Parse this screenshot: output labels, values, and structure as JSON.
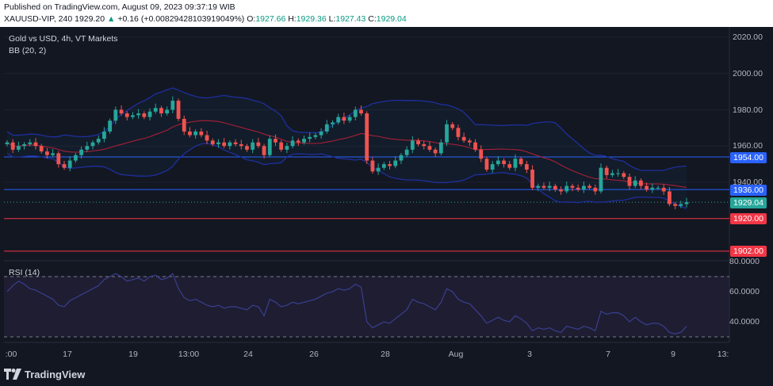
{
  "header": {
    "published": "Published on TradingView.com, August 09, 2023 09:37:19 WIB",
    "symbol": "XAUUSD-VIP, 240",
    "last": "1929.20",
    "change": "+0.16 (+0.00829428103919049%)",
    "o_label": "O:",
    "o": "1927.66",
    "h_label": "H:",
    "h": "1929.36",
    "l_label": "L:",
    "l": "1927.43",
    "c_label": "C:",
    "c": "1929.04"
  },
  "legend": {
    "title": "Gold vs USD, 4h, VT Markets",
    "indicator": "BB (20, 2)",
    "rsi": "RSI (14)"
  },
  "price_axis": [
    "2020.00",
    "2000.00",
    "1980.00",
    "1960.00",
    "1940.00",
    "1920.00",
    "1902.00"
  ],
  "rsi_axis": [
    "80.0000",
    "60.0000",
    "40.0000"
  ],
  "time_axis": [
    ":00",
    "17",
    "19",
    "13:00",
    "24",
    "26",
    "28",
    "Aug",
    "3",
    "7",
    "9",
    "13:"
  ],
  "price_tags": [
    {
      "label": "1954.00",
      "color": "#2962ff"
    },
    {
      "label": "1936.00",
      "color": "#2962ff"
    },
    {
      "label": "1929.04",
      "color": "#26a69a"
    },
    {
      "label": "1920.00",
      "color": "#f23645"
    },
    {
      "label": "1902.00",
      "color": "#f23645"
    }
  ],
  "logo": {
    "text": "TradingView"
  },
  "chart_data": {
    "type": "candlestick",
    "title": "Gold vs USD, 4h, VT Markets",
    "ylim": [
      1895,
      2024
    ],
    "horizontal_levels": [
      {
        "value": 1954.0,
        "color": "#2962ff"
      },
      {
        "value": 1936.0,
        "color": "#2962ff"
      },
      {
        "value": 1920.0,
        "color": "#f23645"
      },
      {
        "value": 1902.0,
        "color": "#f23645"
      }
    ],
    "close_series": [
      1962,
      1958,
      1960,
      1961,
      1962,
      1960,
      1957,
      1955,
      1956,
      1950,
      1948,
      1952,
      1955,
      1958,
      1960,
      1962,
      1964,
      1968,
      1974,
      1980,
      1978,
      1976,
      1977,
      1978,
      1976,
      1979,
      1981,
      1978,
      1980,
      1985,
      1975,
      1968,
      1966,
      1968,
      1966,
      1963,
      1961,
      1962,
      1960,
      1962,
      1961,
      1960,
      1958,
      1962,
      1960,
      1955,
      1964,
      1962,
      1958,
      1960,
      1963,
      1962,
      1964,
      1965,
      1966,
      1968,
      1972,
      1973,
      1976,
      1974,
      1976,
      1980,
      1978,
      1952,
      1946,
      1948,
      1950,
      1949,
      1952,
      1955,
      1958,
      1963,
      1961,
      1960,
      1958,
      1956,
      1962,
      1972,
      1970,
      1965,
      1963,
      1962,
      1958,
      1953,
      1947,
      1950,
      1952,
      1950,
      1948,
      1953,
      1950,
      1947,
      1937,
      1938,
      1937,
      1938,
      1936,
      1935,
      1938,
      1937,
      1936,
      1938,
      1937,
      1935,
      1948,
      1944,
      1945,
      1945,
      1943,
      1938,
      1941,
      1938,
      1936,
      1937,
      1937,
      1935,
      1928,
      1927,
      1928,
      1929.04
    ],
    "rsi_series": [
      60,
      64,
      67,
      65,
      62,
      61,
      59,
      57,
      55,
      51,
      50,
      54,
      56,
      58,
      60,
      62,
      64,
      68,
      70,
      72,
      70,
      67,
      68,
      69,
      67,
      70,
      71,
      68,
      69,
      72,
      62,
      56,
      54,
      55,
      53,
      51,
      50,
      51,
      49,
      50,
      50,
      49,
      48,
      51,
      50,
      44,
      55,
      53,
      50,
      51,
      53,
      52,
      53,
      54,
      55,
      57,
      59,
      60,
      62,
      61,
      62,
      65,
      63,
      40,
      36,
      38,
      40,
      39,
      42,
      45,
      48,
      55,
      53,
      52,
      50,
      48,
      53,
      62,
      60,
      55,
      53,
      52,
      48,
      44,
      39,
      41,
      43,
      41,
      40,
      44,
      42,
      39,
      34,
      36,
      35,
      36,
      34,
      33,
      37,
      36,
      35,
      37,
      36,
      34,
      47,
      45,
      46,
      46,
      44,
      40,
      43,
      40,
      38,
      39,
      39,
      37,
      33,
      32,
      33,
      37
    ],
    "rsi_levels": [
      70,
      30
    ],
    "rsi_ylim": [
      26,
      82
    ],
    "bb_period": 20,
    "bb_mult": 2
  }
}
